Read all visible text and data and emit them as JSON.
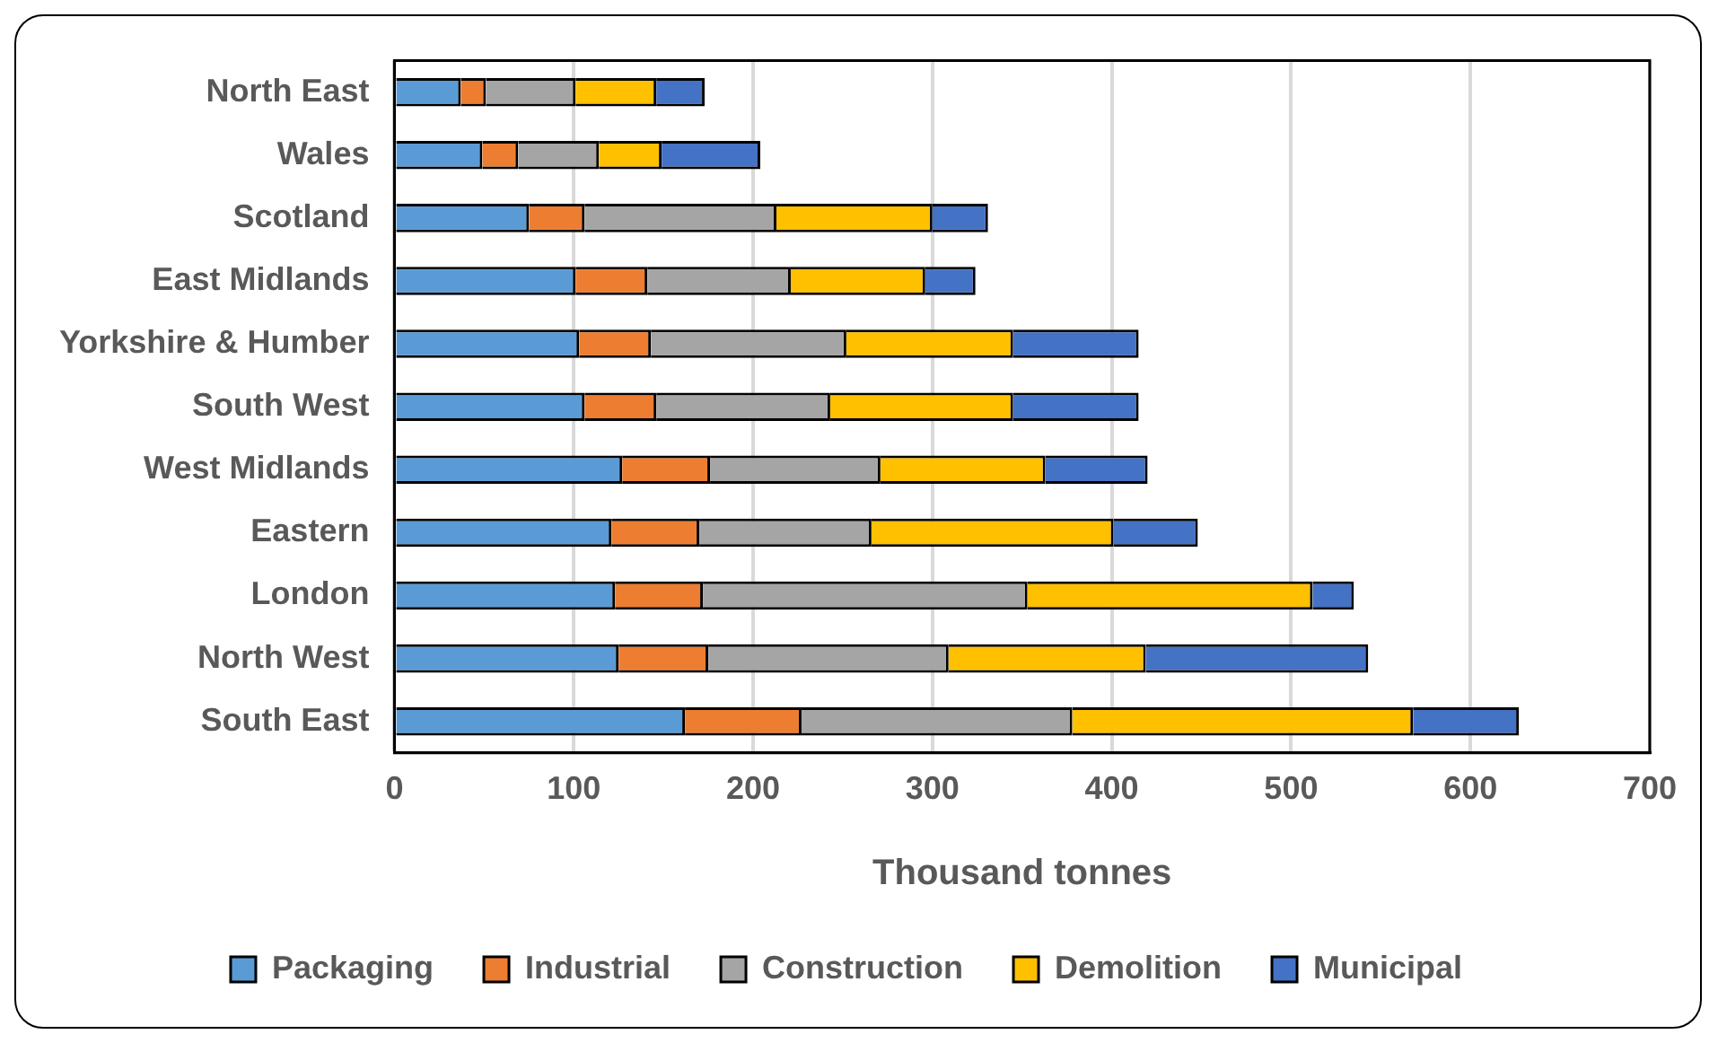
{
  "chart_data": {
    "type": "bar",
    "orientation": "horizontal",
    "stacked": true,
    "xlabel": "Thousand tonnes",
    "categories": [
      "North East",
      "Wales",
      "Scotland",
      "East Midlands",
      "Yorkshire & Humber",
      "South West",
      "West Midlands",
      "Eastern",
      "London",
      "North West",
      "South East"
    ],
    "series": [
      {
        "name": "Packaging",
        "color": "#5b9bd5",
        "values": [
          37,
          49,
          75,
          101,
          103,
          106,
          127,
          121,
          123,
          125,
          162
        ]
      },
      {
        "name": "Industrial",
        "color": "#ed7d31",
        "values": [
          14,
          20,
          31,
          40,
          40,
          40,
          49,
          49,
          49,
          50,
          65
        ]
      },
      {
        "name": "Construction",
        "color": "#a5a5a5",
        "values": [
          50,
          45,
          107,
          80,
          109,
          97,
          95,
          96,
          181,
          134,
          151
        ]
      },
      {
        "name": "Demolition",
        "color": "#ffc000",
        "values": [
          45,
          35,
          87,
          75,
          93,
          102,
          92,
          135,
          159,
          110,
          190
        ]
      },
      {
        "name": "Municipal",
        "color": "#4472c4",
        "values": [
          27,
          55,
          31,
          28,
          70,
          70,
          57,
          47,
          23,
          124,
          59
        ]
      }
    ],
    "xlim": [
      0,
      700
    ],
    "xticks": [
      0,
      100,
      200,
      300,
      400,
      500,
      600,
      700
    ],
    "grid": "x",
    "legend": "bottom"
  }
}
